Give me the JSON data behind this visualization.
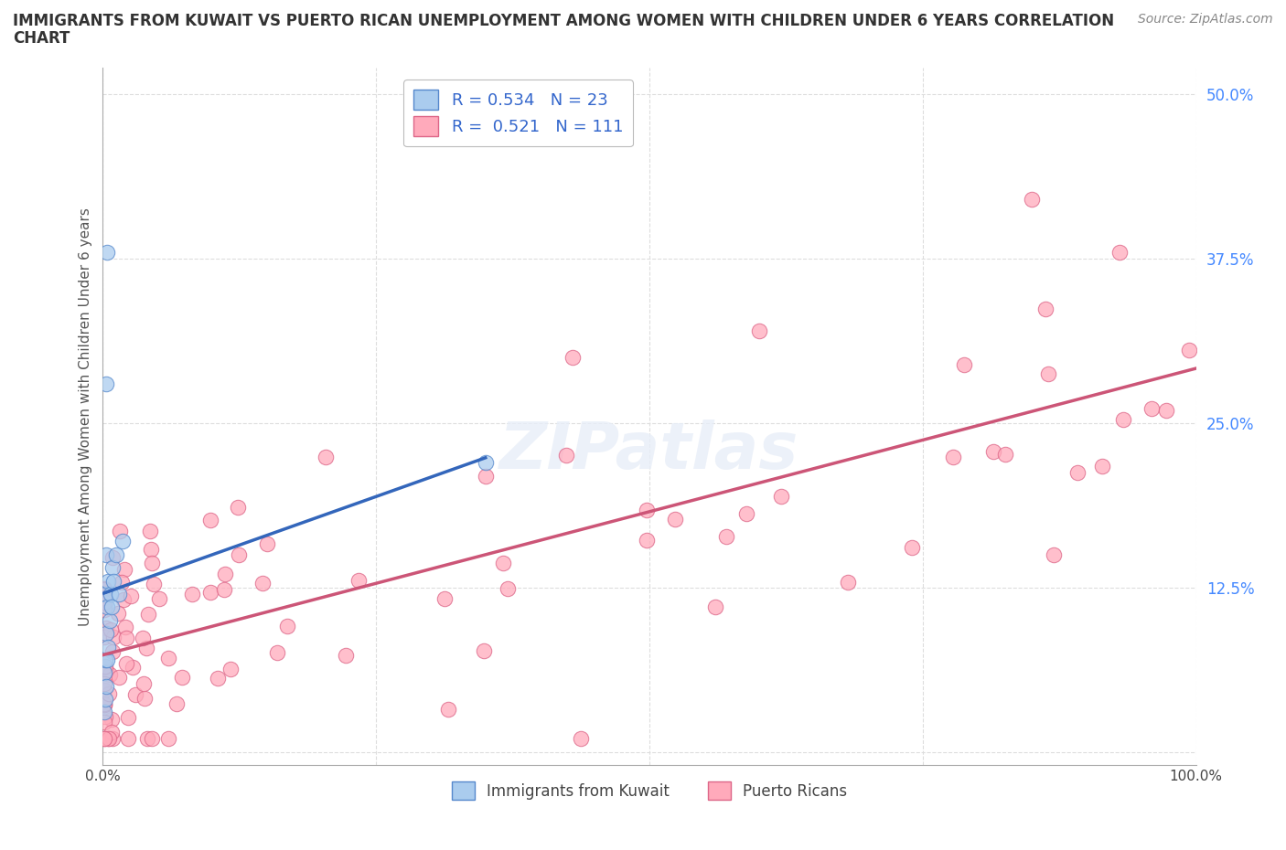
{
  "title_line1": "IMMIGRANTS FROM KUWAIT VS PUERTO RICAN UNEMPLOYMENT AMONG WOMEN WITH CHILDREN UNDER 6 YEARS CORRELATION",
  "title_line2": "CHART",
  "source": "Source: ZipAtlas.com",
  "ylabel": "Unemployment Among Women with Children Under 6 years",
  "ytick_vals": [
    0.0,
    0.125,
    0.25,
    0.375,
    0.5
  ],
  "ytick_labels": [
    "",
    "12.5%",
    "25.0%",
    "37.5%",
    "50.0%"
  ],
  "xtick_labels": [
    "0.0%",
    "100.0%"
  ],
  "legend_kuwait_R": 0.534,
  "legend_kuwait_N": 23,
  "legend_pr_R": 0.521,
  "legend_pr_N": 111,
  "kuwait_scatter_color": "#aaccee",
  "kuwait_edge_color": "#5588cc",
  "kuwait_line_color": "#3366bb",
  "pr_scatter_color": "#ffaabb",
  "pr_edge_color": "#dd6688",
  "pr_line_color": "#cc5577",
  "grid_color": "#dddddd",
  "bg_color": "#ffffff",
  "watermark": "ZIPatlas",
  "title_fontsize": 12,
  "source_fontsize": 10,
  "ylabel_fontsize": 11,
  "ytick_fontsize": 12,
  "legend_fontsize": 13
}
